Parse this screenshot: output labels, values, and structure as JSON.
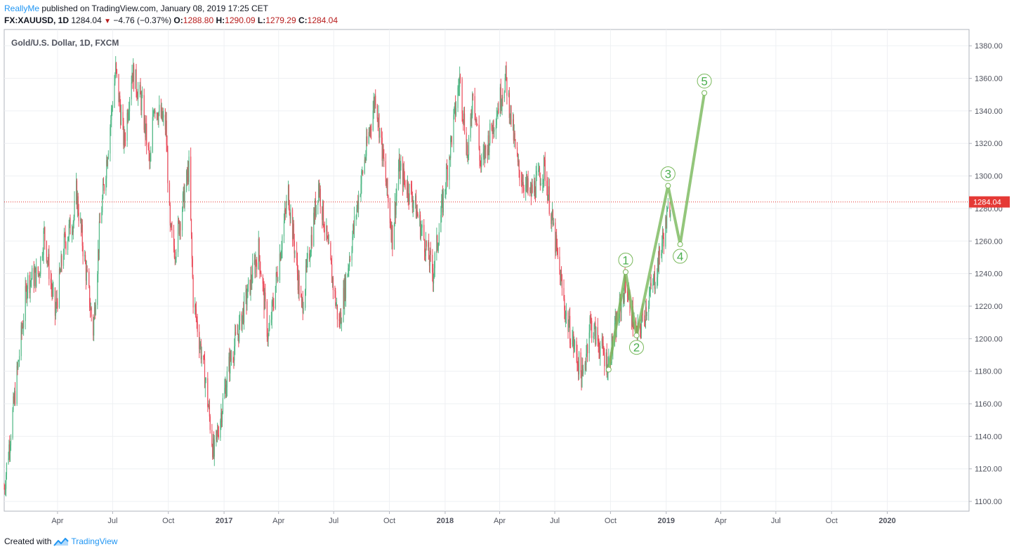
{
  "header": {
    "author": "ReallyMe",
    "publish_text": " published on TradingView.com, January 08, 2019 17:25 CET"
  },
  "quote": {
    "symbol": "FX:XAUUSD, 1D",
    "last": "1284.04",
    "change": "−4.76 (−0.37%)",
    "o_label": "O:",
    "open": "1288.80",
    "h_label": "H:",
    "high": "1290.09",
    "l_label": "L:",
    "low": "1279.29",
    "c_label": "C:",
    "close": "1284.04"
  },
  "footer": {
    "created_with": "Created with",
    "brand": "TradingView"
  },
  "colors": {
    "up": "#53b987",
    "down": "#eb4d5c",
    "wave": "#78b85a",
    "price_line": "#e53935"
  },
  "icons": {
    "down_arrow": "down-triangle-icon",
    "brand": "tradingview-logo-icon"
  },
  "chart_data": {
    "type": "candlestick",
    "title": "Gold/U.S. Dollar, 1D, FXCM",
    "ylim": [
      1094,
      1390
    ],
    "xlim": [
      "2016-01-04",
      "2020-05-15"
    ],
    "y_ticks": [
      1100,
      1120,
      1140,
      1160,
      1180,
      1200,
      1220,
      1240,
      1260,
      1280,
      1300,
      1320,
      1340,
      1360,
      1380
    ],
    "x_ticks": [
      {
        "label": "Apr",
        "date": "2016-04-01",
        "bold": false
      },
      {
        "label": "Jul",
        "date": "2016-07-01",
        "bold": false
      },
      {
        "label": "Oct",
        "date": "2016-10-01",
        "bold": false
      },
      {
        "label": "2017",
        "date": "2017-01-01",
        "bold": true
      },
      {
        "label": "Apr",
        "date": "2017-04-01",
        "bold": false
      },
      {
        "label": "Jul",
        "date": "2017-07-01",
        "bold": false
      },
      {
        "label": "Oct",
        "date": "2017-10-01",
        "bold": false
      },
      {
        "label": "2018",
        "date": "2018-01-01",
        "bold": true
      },
      {
        "label": "Apr",
        "date": "2018-04-01",
        "bold": false
      },
      {
        "label": "Jul",
        "date": "2018-07-01",
        "bold": false
      },
      {
        "label": "Oct",
        "date": "2018-10-01",
        "bold": false
      },
      {
        "label": "2019",
        "date": "2019-01-01",
        "bold": true
      },
      {
        "label": "Apr",
        "date": "2019-04-01",
        "bold": false
      },
      {
        "label": "Jul",
        "date": "2019-07-01",
        "bold": false
      },
      {
        "label": "Oct",
        "date": "2019-10-01",
        "bold": false
      },
      {
        "label": "2020",
        "date": "2020-01-01",
        "bold": true
      }
    ],
    "price_line": 1284.04,
    "price_label": "1284.04",
    "price_path": [
      [
        "2016-01-04",
        1108
      ],
      [
        "2016-01-20",
        1160
      ],
      [
        "2016-02-11",
        1235
      ],
      [
        "2016-03-01",
        1240
      ],
      [
        "2016-03-10",
        1265
      ],
      [
        "2016-03-28",
        1215
      ],
      [
        "2016-04-12",
        1258
      ],
      [
        "2016-04-28",
        1275
      ],
      [
        "2016-05-02",
        1290
      ],
      [
        "2016-05-30",
        1205
      ],
      [
        "2016-06-10",
        1270
      ],
      [
        "2016-06-24",
        1320
      ],
      [
        "2016-07-06",
        1365
      ],
      [
        "2016-07-20",
        1320
      ],
      [
        "2016-08-02",
        1365
      ],
      [
        "2016-08-18",
        1345
      ],
      [
        "2016-09-01",
        1305
      ],
      [
        "2016-09-07",
        1345
      ],
      [
        "2016-09-27",
        1330
      ],
      [
        "2016-10-04",
        1265
      ],
      [
        "2016-10-12",
        1255
      ],
      [
        "2016-11-04",
        1305
      ],
      [
        "2016-11-11",
        1225
      ],
      [
        "2016-12-01",
        1175
      ],
      [
        "2016-12-15",
        1128
      ],
      [
        "2017-01-10",
        1185
      ],
      [
        "2017-01-25",
        1205
      ],
      [
        "2017-02-27",
        1255
      ],
      [
        "2017-03-15",
        1200
      ],
      [
        "2017-04-17",
        1290
      ],
      [
        "2017-05-09",
        1218
      ],
      [
        "2017-06-06",
        1295
      ],
      [
        "2017-07-10",
        1208
      ],
      [
        "2017-08-10",
        1285
      ],
      [
        "2017-09-08",
        1350
      ],
      [
        "2017-10-06",
        1262
      ],
      [
        "2017-10-16",
        1305
      ],
      [
        "2017-11-10",
        1285
      ],
      [
        "2017-12-12",
        1240
      ],
      [
        "2018-01-25",
        1360
      ],
      [
        "2018-02-08",
        1310
      ],
      [
        "2018-02-16",
        1355
      ],
      [
        "2018-03-01",
        1305
      ],
      [
        "2018-04-11",
        1360
      ],
      [
        "2018-05-01",
        1305
      ],
      [
        "2018-05-21",
        1288
      ],
      [
        "2018-06-14",
        1305
      ],
      [
        "2018-07-19",
        1215
      ],
      [
        "2018-08-16",
        1175
      ],
      [
        "2018-08-28",
        1210
      ],
      [
        "2018-09-27",
        1184
      ],
      [
        "2018-10-26",
        1235
      ],
      [
        "2018-11-13",
        1200
      ],
      [
        "2018-12-14",
        1238
      ],
      [
        "2019-01-08",
        1284
      ]
    ],
    "waves": {
      "points": [
        {
          "date": "2018-09-28",
          "value": 1181,
          "label": ""
        },
        {
          "date": "2018-10-26",
          "value": 1241,
          "label": "1"
        },
        {
          "date": "2018-11-13",
          "value": 1202,
          "label": "2"
        },
        {
          "date": "2019-01-04",
          "value": 1294,
          "label": "3"
        },
        {
          "date": "2019-01-24",
          "value": 1258,
          "label": "4"
        },
        {
          "date": "2019-03-05",
          "value": 1351,
          "label": "5"
        }
      ]
    }
  }
}
